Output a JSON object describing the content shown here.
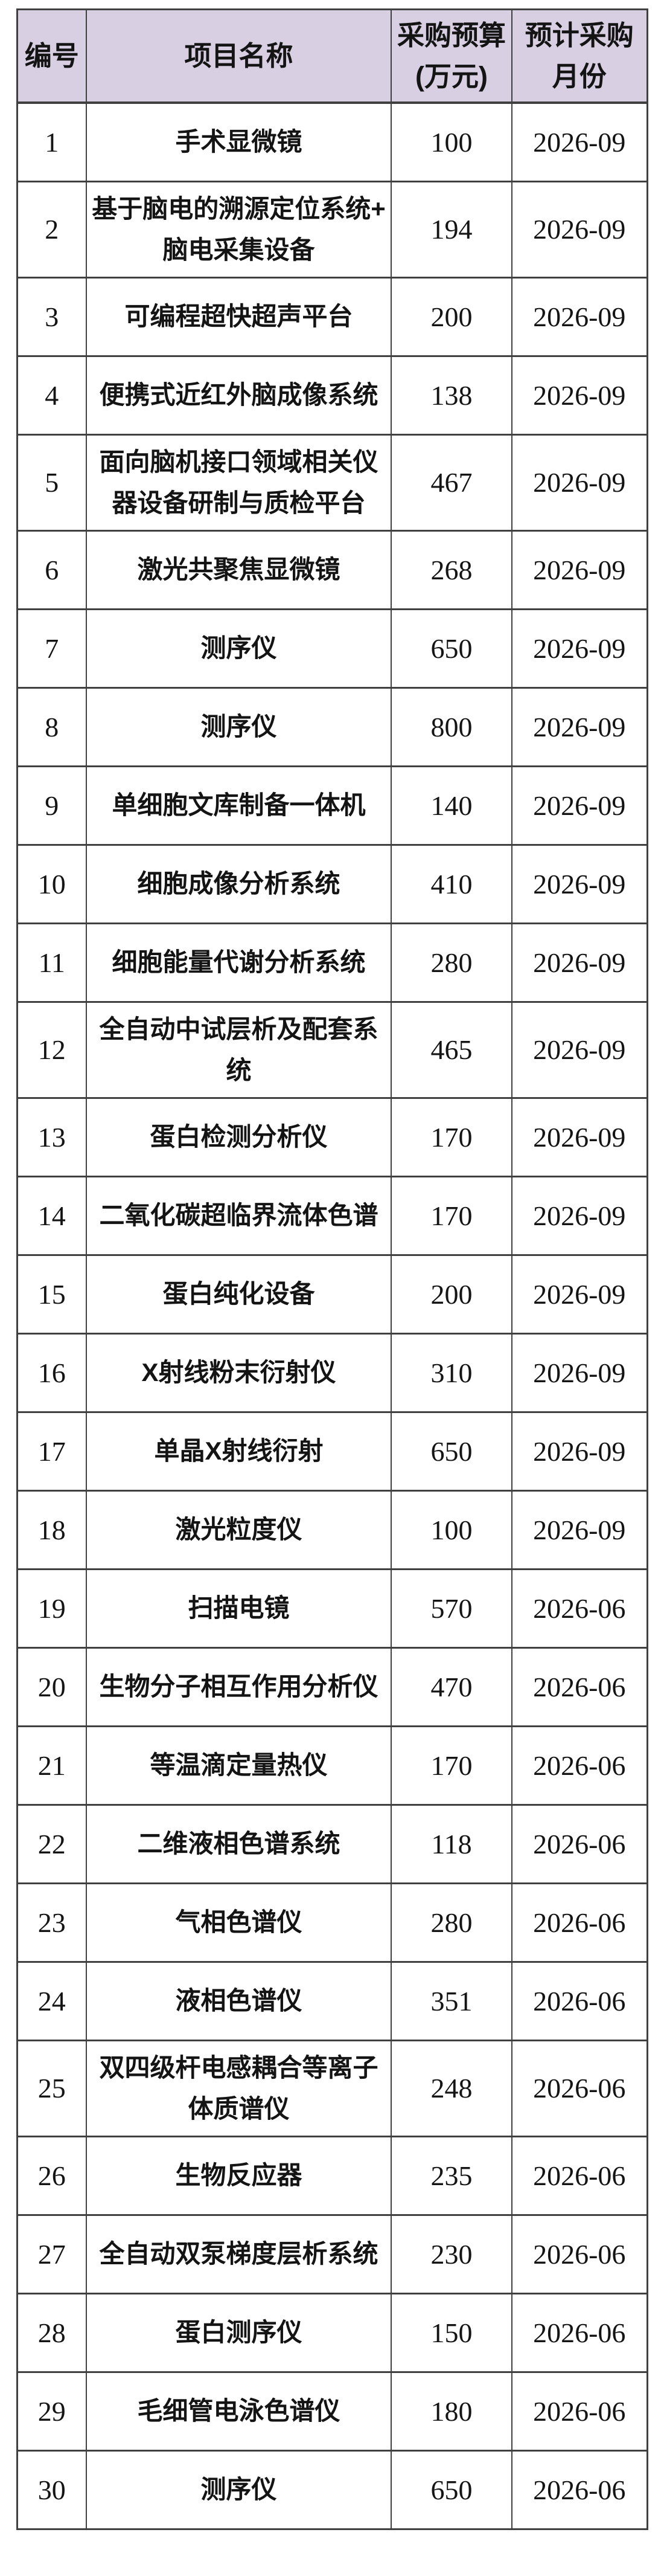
{
  "colors": {
    "header_bg": "#d8cfe2",
    "border_color": "#404040",
    "text_color": "#141414",
    "row_bg": "#ffffff"
  },
  "table": {
    "headers": [
      {
        "label": "编号"
      },
      {
        "label": "项目名称"
      },
      {
        "label": "采购预算\n(万元)"
      },
      {
        "label": "预计采购\n月份"
      }
    ],
    "rows": [
      {
        "no": "1",
        "name": "手术显微镜",
        "budget": "100",
        "month": "2026-09"
      },
      {
        "no": "2",
        "name": "基于脑电的溯源定位系统+\n脑电采集设备",
        "budget": "194",
        "month": "2026-09"
      },
      {
        "no": "3",
        "name": "可编程超快超声平台",
        "budget": "200",
        "month": "2026-09"
      },
      {
        "no": "4",
        "name": "便携式近红外脑成像系统",
        "budget": "138",
        "month": "2026-09"
      },
      {
        "no": "5",
        "name": "面向脑机接口领域相关仪\n器设备研制与质检平台",
        "budget": "467",
        "month": "2026-09"
      },
      {
        "no": "6",
        "name": "激光共聚焦显微镜",
        "budget": "268",
        "month": "2026-09"
      },
      {
        "no": "7",
        "name": "测序仪",
        "budget": "650",
        "month": "2026-09"
      },
      {
        "no": "8",
        "name": "测序仪",
        "budget": "800",
        "month": "2026-09"
      },
      {
        "no": "9",
        "name": "单细胞文库制备一体机",
        "budget": "140",
        "month": "2026-09"
      },
      {
        "no": "10",
        "name": "细胞成像分析系统",
        "budget": "410",
        "month": "2026-09"
      },
      {
        "no": "11",
        "name": "细胞能量代谢分析系统",
        "budget": "280",
        "month": "2026-09"
      },
      {
        "no": "12",
        "name": "全自动中试层析及配套系\n统",
        "budget": "465",
        "month": "2026-09"
      },
      {
        "no": "13",
        "name": "蛋白检测分析仪",
        "budget": "170",
        "month": "2026-09"
      },
      {
        "no": "14",
        "name": "二氧化碳超临界流体色谱",
        "budget": "170",
        "month": "2026-09"
      },
      {
        "no": "15",
        "name": "蛋白纯化设备",
        "budget": "200",
        "month": "2026-09"
      },
      {
        "no": "16",
        "name": "X射线粉末衍射仪",
        "budget": "310",
        "month": "2026-09"
      },
      {
        "no": "17",
        "name": "单晶X射线衍射",
        "budget": "650",
        "month": "2026-09"
      },
      {
        "no": "18",
        "name": "激光粒度仪",
        "budget": "100",
        "month": "2026-09"
      },
      {
        "no": "19",
        "name": "扫描电镜",
        "budget": "570",
        "month": "2026-06"
      },
      {
        "no": "20",
        "name": "生物分子相互作用分析仪",
        "budget": "470",
        "month": "2026-06"
      },
      {
        "no": "21",
        "name": "等温滴定量热仪",
        "budget": "170",
        "month": "2026-06"
      },
      {
        "no": "22",
        "name": "二维液相色谱系统",
        "budget": "118",
        "month": "2026-06"
      },
      {
        "no": "23",
        "name": "气相色谱仪",
        "budget": "280",
        "month": "2026-06"
      },
      {
        "no": "24",
        "name": "液相色谱仪",
        "budget": "351",
        "month": "2026-06"
      },
      {
        "no": "25",
        "name": "双四级杆电感耦合等离子\n体质谱仪",
        "budget": "248",
        "month": "2026-06"
      },
      {
        "no": "26",
        "name": "生物反应器",
        "budget": "235",
        "month": "2026-06"
      },
      {
        "no": "27",
        "name": "全自动双泵梯度层析系统",
        "budget": "230",
        "month": "2026-06"
      },
      {
        "no": "28",
        "name": "蛋白测序仪",
        "budget": "150",
        "month": "2026-06"
      },
      {
        "no": "29",
        "name": "毛细管电泳色谱仪",
        "budget": "180",
        "month": "2026-06"
      },
      {
        "no": "30",
        "name": "测序仪",
        "budget": "650",
        "month": "2026-06"
      }
    ]
  }
}
